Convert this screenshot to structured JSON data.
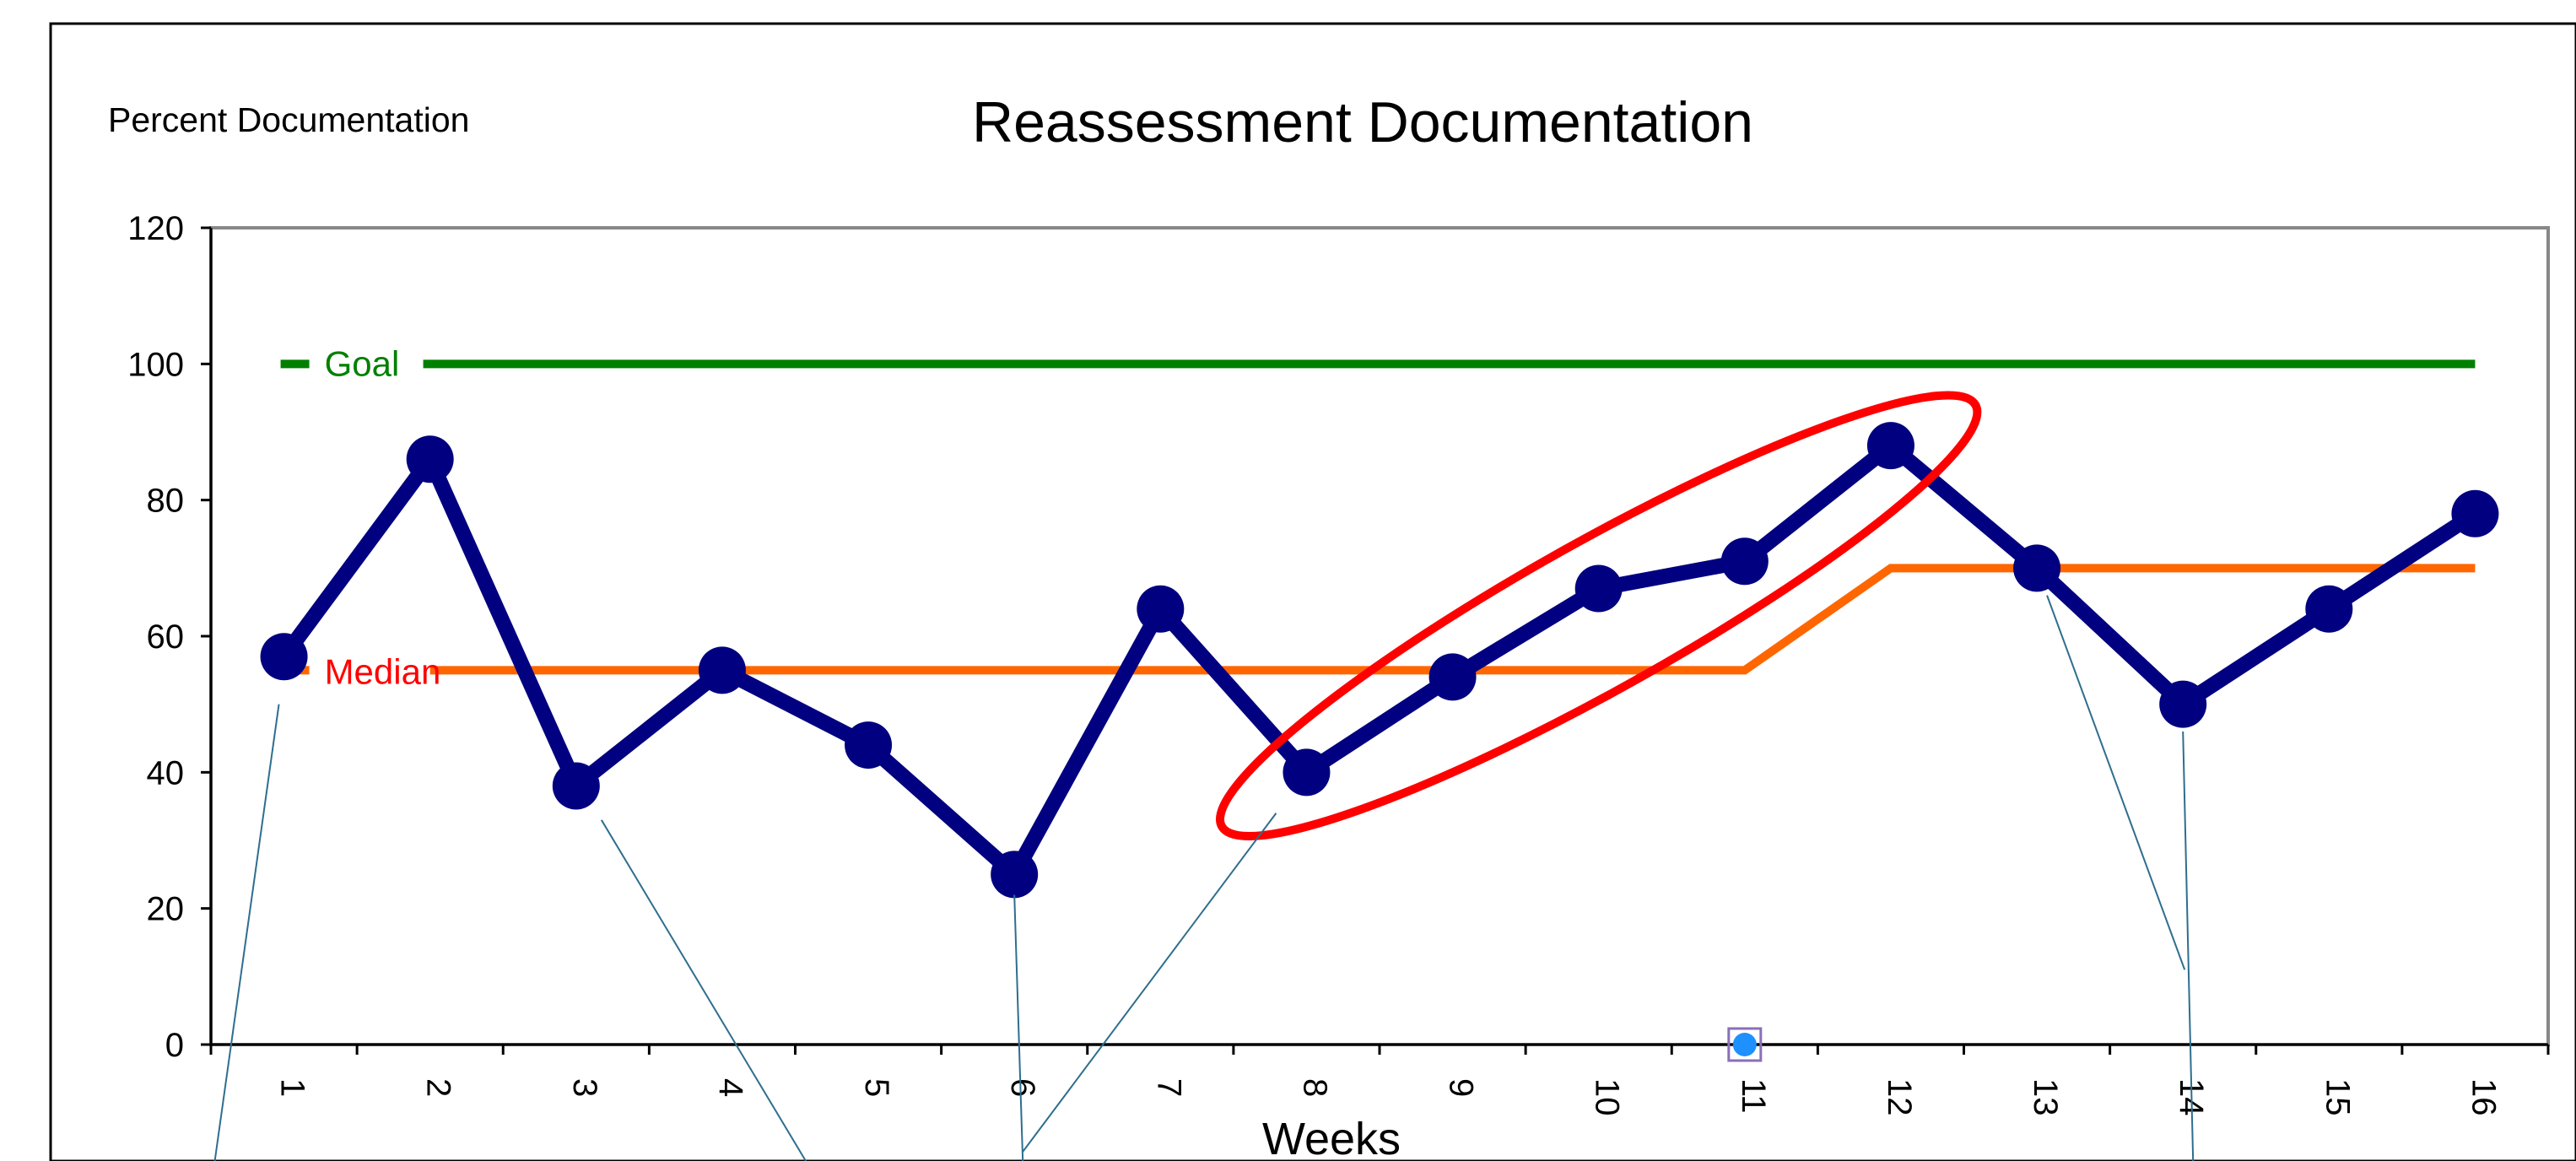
{
  "chart_data": {
    "type": "line",
    "title": "Reassessment Documentation",
    "ylabel": "Percent Documentation",
    "xlabel": "Weeks",
    "categories": [
      "1",
      "2",
      "3",
      "4",
      "5",
      "6",
      "7",
      "8",
      "9",
      "10",
      "11",
      "12",
      "13",
      "14",
      "15",
      "16"
    ],
    "x": [
      1,
      2,
      3,
      4,
      5,
      6,
      7,
      8,
      9,
      10,
      11,
      12,
      13,
      14,
      15,
      16
    ],
    "ylim": [
      0,
      120
    ],
    "yticks": [
      0,
      20,
      40,
      60,
      80,
      100,
      120
    ],
    "grid": false,
    "series": [
      {
        "values": [
          57,
          86,
          38,
          55,
          44,
          25,
          64,
          40,
          54,
          67,
          71,
          88,
          70,
          50,
          64,
          78
        ],
        "color": "#000080"
      },
      {
        "name": "Median",
        "values": [
          55,
          55,
          55,
          55,
          55,
          55,
          55,
          55,
          55,
          55,
          55,
          70,
          70,
          70,
          70,
          70
        ],
        "color": "#ff6600"
      },
      {
        "name": "Goal",
        "values": [
          100,
          100,
          100,
          100,
          100,
          100,
          100,
          100,
          100,
          100,
          100,
          100,
          100,
          100,
          100,
          100
        ],
        "color": "#008000"
      }
    ],
    "annotations": {
      "goal_label": "Goal",
      "goal_label_color": "#008000",
      "median_label": "Median",
      "median_label_color": "#ff0000",
      "highlight_ellipse_color": "#ff0000",
      "highlight_weeks": [
        8,
        12
      ],
      "callout_line_color": "#2e6e8e",
      "selection_marker_color": "#1e90ff"
    }
  }
}
